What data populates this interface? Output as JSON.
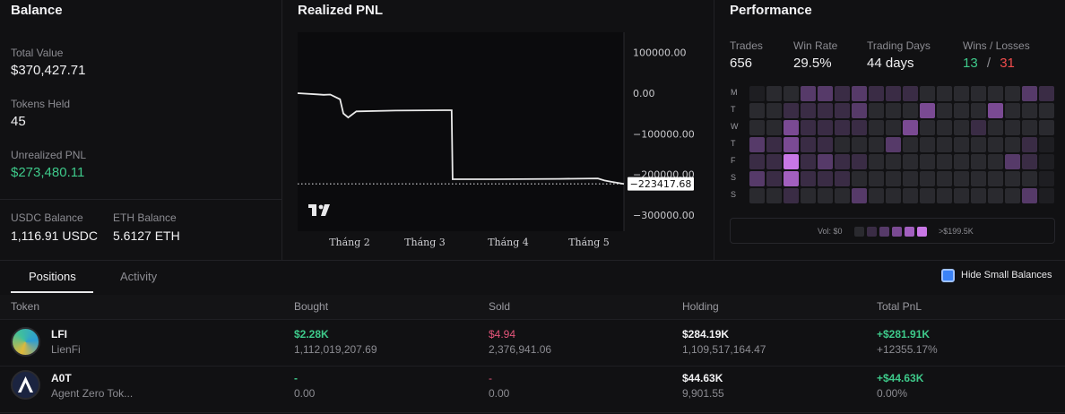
{
  "balance": {
    "title": "Balance",
    "total_value_label": "Total Value",
    "total_value": "$370,427.71",
    "tokens_held_label": "Tokens Held",
    "tokens_held": "45",
    "unrealized_pnl_label": "Unrealized PNL",
    "unrealized_pnl": "$273,480.11",
    "usdc_label": "USDC Balance",
    "usdc_value": "1,116.91 USDC",
    "eth_label": "ETH Balance",
    "eth_value": "5.6127 ETH"
  },
  "pnl": {
    "title": "Realized PNL",
    "current_value": "−223417.68",
    "logo_text": "TV",
    "chart_data": {
      "type": "line",
      "y_ticks": [
        "100000.00",
        "0.00",
        "−100000.00",
        "−200000.00",
        "−300000.00"
      ],
      "x_ticks": [
        "Tháng 2",
        "Tháng 3",
        "Tháng 4",
        "Tháng 5"
      ],
      "ylim": [
        -340000,
        150000
      ],
      "series": [
        {
          "x": [
            0,
            0.06,
            0.08,
            0.1,
            0.13,
            0.14,
            0.155,
            0.18,
            0.3,
            0.45,
            0.472,
            0.475,
            0.6,
            0.8,
            0.92,
            0.94,
            0.96,
            1.0
          ],
          "values": [
            0,
            -3000,
            -4000,
            -3500,
            -15000,
            -50000,
            -60000,
            -45000,
            -43000,
            -42000,
            -42000,
            -212000,
            -212000,
            -211000,
            -210000,
            -215000,
            -218000,
            -223417.68
          ]
        }
      ]
    }
  },
  "performance": {
    "title": "Performance",
    "trades_label": "Trades",
    "trades": "656",
    "winrate_label": "Win Rate",
    "winrate": "29.5%",
    "days_label": "Trading Days",
    "days": "44 days",
    "wl_label": "Wins / Losses",
    "wins": "13",
    "sep": "/",
    "losses": "31",
    "day_labels": [
      "M",
      "T",
      "W",
      "T",
      "F",
      "S",
      "S"
    ],
    "heatmap_levels": [
      [
        0,
        1,
        1,
        3,
        3,
        2,
        3,
        2,
        2,
        2,
        1,
        1,
        1,
        1,
        1,
        1,
        3,
        2
      ],
      [
        1,
        1,
        2,
        2,
        2,
        2,
        3,
        1,
        1,
        1,
        4,
        1,
        1,
        1,
        4,
        1,
        1,
        1
      ],
      [
        1,
        1,
        4,
        2,
        2,
        2,
        2,
        1,
        1,
        4,
        1,
        1,
        1,
        2,
        1,
        1,
        1,
        1
      ],
      [
        3,
        2,
        4,
        2,
        2,
        1,
        1,
        1,
        3,
        1,
        1,
        1,
        1,
        1,
        1,
        1,
        2,
        0
      ],
      [
        2,
        2,
        6,
        2,
        3,
        2,
        2,
        1,
        1,
        1,
        1,
        1,
        1,
        1,
        1,
        3,
        2,
        0
      ],
      [
        3,
        2,
        5,
        2,
        2,
        2,
        1,
        1,
        1,
        1,
        1,
        1,
        1,
        1,
        1,
        1,
        1,
        0
      ],
      [
        1,
        1,
        2,
        1,
        1,
        1,
        3,
        1,
        1,
        1,
        1,
        1,
        1,
        1,
        1,
        1,
        3,
        0
      ]
    ],
    "level_colors": [
      "#1e1e22",
      "#2a2a2f",
      "#3a2c45",
      "#563a69",
      "#7a4a93",
      "#a25fbf",
      "#c877e5"
    ],
    "legend_min": "Vol: $0",
    "legend_max": ">$199.5K"
  },
  "tabs": {
    "positions": "Positions",
    "activity": "Activity"
  },
  "hide_small": "Hide Small Balances",
  "table": {
    "headers": [
      "Token",
      "Bought",
      "Sold",
      "Holding",
      "Total PnL"
    ],
    "rows": [
      {
        "symbol": "LFI",
        "name": "LienFi",
        "bought_usd": "$2.28K",
        "bought_amt": "1,112,019,207.69",
        "sold_usd": "$4.94",
        "sold_amt": "2,376,941.06",
        "holding_usd": "$284.19K",
        "holding_amt": "1,109,517,164.47",
        "pnl_usd": "+$281.91K",
        "pnl_pct": "+12355.17%"
      },
      {
        "symbol": "A0T",
        "name": "Agent Zero Tok...",
        "bought_usd": "-",
        "bought_amt": "0.00",
        "sold_usd": "-",
        "sold_amt": "0.00",
        "holding_usd": "$44.63K",
        "holding_amt": "9,901.55",
        "pnl_usd": "+$44.63K",
        "pnl_pct": "0.00%"
      }
    ]
  }
}
